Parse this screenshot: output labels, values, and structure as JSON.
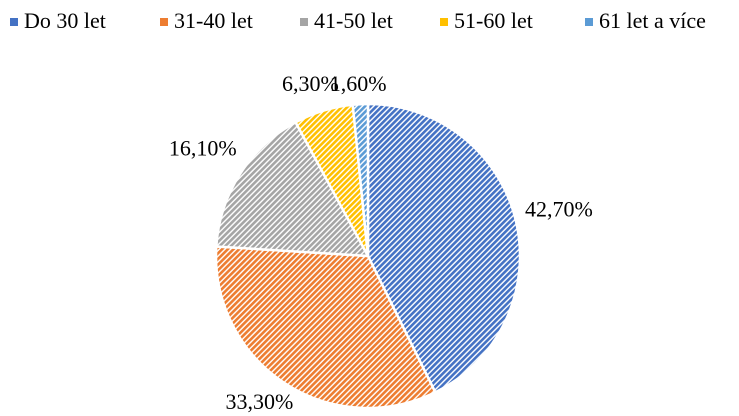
{
  "chart_data": {
    "type": "pie",
    "categories": [
      "Do 30 let",
      "31-40 let",
      "41-50 let",
      "51-60 let",
      "61 let a více"
    ],
    "values": [
      42.7,
      33.3,
      16.1,
      6.3,
      1.6
    ],
    "value_labels": [
      "42,70%",
      "33,30%",
      "16,10%",
      "6,30%",
      "1,60%"
    ],
    "colors": [
      "#4472c4",
      "#ed7d31",
      "#a5a5a5",
      "#ffc000",
      "#5b9bd5"
    ],
    "legend": "top"
  }
}
